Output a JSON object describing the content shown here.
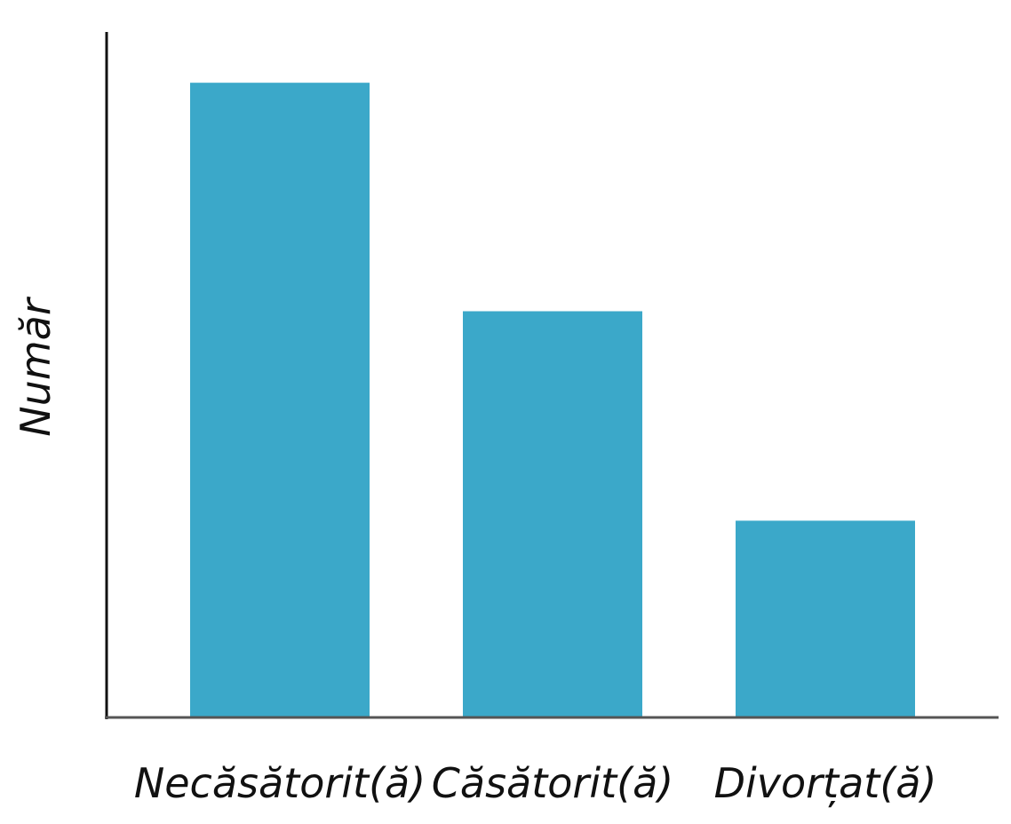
{
  "chart_data": {
    "type": "bar",
    "categories": [
      "Necăsătorit(ă)",
      "Căsătorit(ă)",
      "Divorțat(ă)"
    ],
    "values": [
      100,
      64,
      31
    ],
    "title": "",
    "xlabel": "",
    "ylabel": "Număr",
    "ylim": [
      0,
      108
    ],
    "bar_color": "#3ba8c9",
    "axis_color": "#111111",
    "grid": false,
    "legend": "none"
  }
}
